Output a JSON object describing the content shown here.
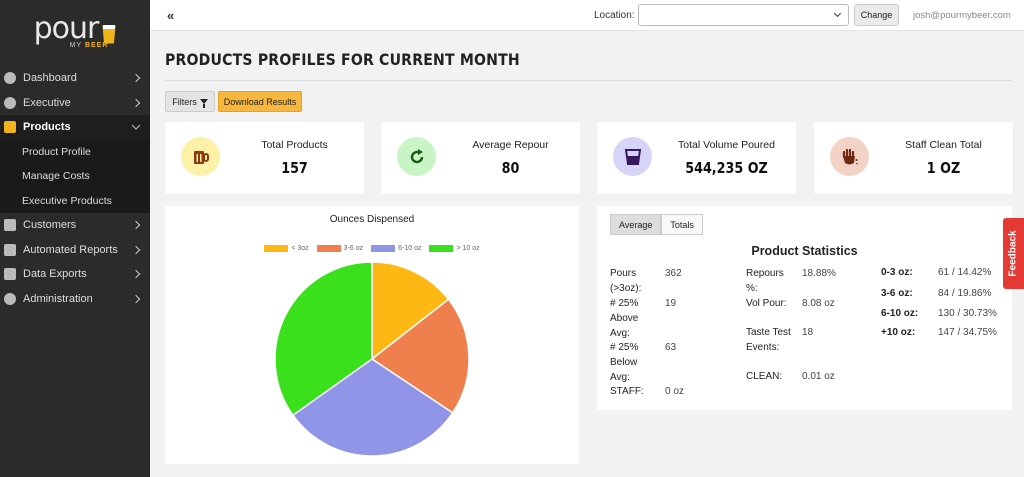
{
  "brand": {
    "name": "pour",
    "sub_prefix": "MY",
    "sub_suffix": "BEER"
  },
  "sidebar": {
    "items": [
      {
        "label": "Dashboard",
        "icon": "dashboard-icon"
      },
      {
        "label": "Executive",
        "icon": "globe-icon"
      },
      {
        "label": "Products",
        "icon": "mug-icon"
      },
      {
        "label": "Customers",
        "icon": "walk-icon"
      },
      {
        "label": "Automated Reports",
        "icon": "chart-line-icon"
      },
      {
        "label": "Data Exports",
        "icon": "database-icon"
      },
      {
        "label": "Administration",
        "icon": "users-icon"
      }
    ],
    "sub_items": [
      "Product Profile",
      "Manage Costs",
      "Executive Products"
    ]
  },
  "topbar": {
    "collapse": "«",
    "location_label": "Location:",
    "location_value": "",
    "change_label": "Change",
    "user": "josh@pourmybeer.com"
  },
  "page": {
    "title": "PRODUCTS PROFILES FOR CURRENT MONTH",
    "filters_label": "Filters",
    "download_label": "Download Results"
  },
  "cards": [
    {
      "label": "Total Products",
      "value": "157",
      "color": "#fdf1a8"
    },
    {
      "label": "Average Repour",
      "value": "80",
      "color": "#c9f5c4"
    },
    {
      "label": "Total Volume Poured",
      "value": "544,235 OZ",
      "color": "#d6d4f7"
    },
    {
      "label": "Staff Clean Total",
      "value": "1 OZ",
      "color": "#f3d3c6"
    }
  ],
  "chart_data": {
    "type": "pie",
    "title": "Ounces Dispensed",
    "categories": [
      "< 3oz",
      "3-6 oz",
      "6-10 oz",
      "> 10 oz"
    ],
    "values": [
      61,
      84,
      130,
      147
    ],
    "percent": [
      14.42,
      19.86,
      30.73,
      34.75
    ],
    "colors": [
      "#fdb813",
      "#ef7f4c",
      "#9095e8",
      "#3ae01c"
    ],
    "legend_position": "top"
  },
  "stats": {
    "tabs": [
      "Average",
      "Totals"
    ],
    "title": "Product Statistics",
    "col1": [
      {
        "label": "Pours (>3oz):",
        "value": "362"
      },
      {
        "label": "# 25% Above Avg:",
        "value": "19"
      },
      {
        "label": "# 25% Below Avg:",
        "value": "63"
      },
      {
        "label": "STAFF:",
        "value": "0 oz"
      }
    ],
    "col2": [
      {
        "label": "Repours %:",
        "value": "18.88%"
      },
      {
        "label": "Vol Pour:",
        "value": "8.08 oz"
      },
      {
        "label": "Taste Test Events:",
        "value": "18"
      },
      {
        "label": "CLEAN:",
        "value": "0.01 oz"
      }
    ],
    "col3": [
      {
        "label": "0-3 oz:",
        "value": "61 / 14.42%"
      },
      {
        "label": "3-6 oz:",
        "value": "84 / 19.86%"
      },
      {
        "label": "6-10 oz:",
        "value": "130 / 30.73%"
      },
      {
        "label": "+10 oz:",
        "value": "147 / 34.75%"
      }
    ]
  },
  "feedback_label": "Feedback"
}
